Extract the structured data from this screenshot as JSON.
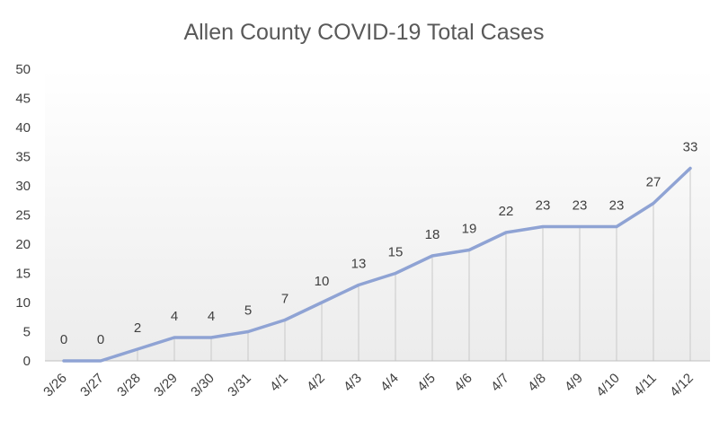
{
  "chart_data": {
    "type": "line",
    "title": "Allen County COVID-19 Total Cases",
    "xlabel": "",
    "ylabel": "",
    "categories": [
      "3/26",
      "3/27",
      "3/28",
      "3/29",
      "3/30",
      "3/31",
      "4/1",
      "4/2",
      "4/3",
      "4/4",
      "4/5",
      "4/6",
      "4/7",
      "4/8",
      "4/9",
      "4/10",
      "4/11",
      "4/12"
    ],
    "series": [
      {
        "values": [
          0,
          0,
          2,
          4,
          4,
          5,
          7,
          10,
          13,
          15,
          18,
          19,
          22,
          23,
          23,
          23,
          27,
          33
        ]
      }
    ],
    "ylim": [
      0,
      50
    ],
    "yticks": [
      0,
      5,
      10,
      15,
      20,
      25,
      30,
      35,
      40,
      45,
      50
    ],
    "grid": false,
    "drop_lines": true,
    "data_labels": true,
    "colors": {
      "series": "#8fa3d4",
      "plot_gradient_top": "#ffffff",
      "plot_gradient_bottom": "#ececec"
    }
  }
}
